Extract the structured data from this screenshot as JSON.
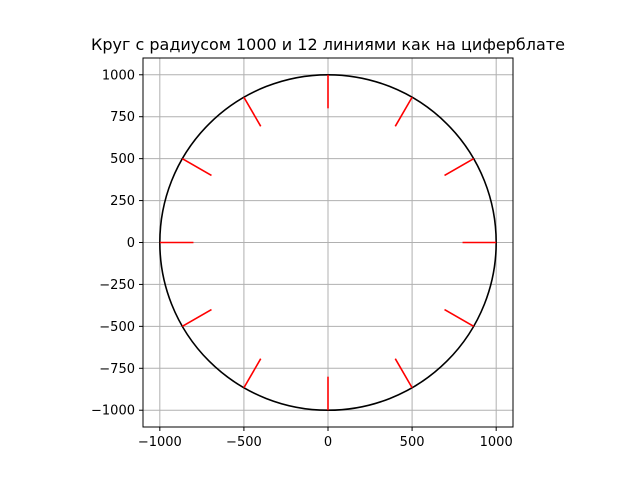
{
  "chart_data": {
    "type": "line",
    "title": "Круг с радиусом 1000 и 12 линиями как на циферблате",
    "xlabel": "",
    "ylabel": "",
    "xlim": [
      -1100,
      1100
    ],
    "ylim": [
      -1100,
      1100
    ],
    "grid": true,
    "aspect": "equal",
    "circle": {
      "center": [
        0,
        0
      ],
      "radius": 1000,
      "color": "#000000"
    },
    "radial_lines": {
      "count": 12,
      "inner_radius": 800,
      "outer_radius": 1000,
      "angles_deg": [
        0,
        30,
        60,
        90,
        120,
        150,
        180,
        210,
        240,
        270,
        300,
        330
      ],
      "color": "#ff0000"
    },
    "x_ticks": [
      {
        "value": -1000,
        "label": "−1000"
      },
      {
        "value": -500,
        "label": "−500"
      },
      {
        "value": 0,
        "label": "0"
      },
      {
        "value": 500,
        "label": "500"
      },
      {
        "value": 1000,
        "label": "1000"
      }
    ],
    "y_ticks": [
      {
        "value": 1000,
        "label": "1000"
      },
      {
        "value": 750,
        "label": "750"
      },
      {
        "value": 500,
        "label": "500"
      },
      {
        "value": 250,
        "label": "250"
      },
      {
        "value": 0,
        "label": "0"
      },
      {
        "value": -250,
        "label": "−250"
      },
      {
        "value": -500,
        "label": "−500"
      },
      {
        "value": -750,
        "label": "−750"
      },
      {
        "value": -1000,
        "label": "−1000"
      }
    ]
  }
}
